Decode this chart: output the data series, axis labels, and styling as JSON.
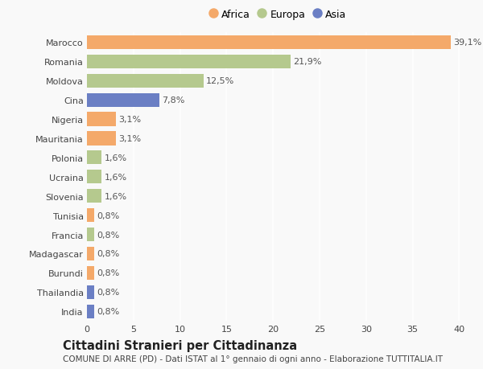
{
  "countries": [
    "Marocco",
    "Romania",
    "Moldova",
    "Cina",
    "Nigeria",
    "Mauritania",
    "Polonia",
    "Ucraina",
    "Slovenia",
    "Tunisia",
    "Francia",
    "Madagascar",
    "Burundi",
    "Thailandia",
    "India"
  ],
  "values": [
    39.1,
    21.9,
    12.5,
    7.8,
    3.1,
    3.1,
    1.6,
    1.6,
    1.6,
    0.8,
    0.8,
    0.8,
    0.8,
    0.8,
    0.8
  ],
  "labels": [
    "39,1%",
    "21,9%",
    "12,5%",
    "7,8%",
    "3,1%",
    "3,1%",
    "1,6%",
    "1,6%",
    "1,6%",
    "0,8%",
    "0,8%",
    "0,8%",
    "0,8%",
    "0,8%",
    "0,8%"
  ],
  "continents": [
    "Africa",
    "Europa",
    "Europa",
    "Asia",
    "Africa",
    "Africa",
    "Europa",
    "Europa",
    "Europa",
    "Africa",
    "Europa",
    "Africa",
    "Africa",
    "Asia",
    "Asia"
  ],
  "colors": {
    "Africa": "#F4A96A",
    "Europa": "#B5C98E",
    "Asia": "#6B7FC4"
  },
  "xlim": [
    0,
    41
  ],
  "xticks": [
    0,
    5,
    10,
    15,
    20,
    25,
    30,
    35,
    40
  ],
  "title": "Cittadini Stranieri per Cittadinanza",
  "subtitle": "COMUNE DI ARRE (PD) - Dati ISTAT al 1° gennaio di ogni anno - Elaborazione TUTTITALIA.IT",
  "background_color": "#f9f9f9",
  "grid_color": "#ffffff",
  "bar_height": 0.72,
  "label_fontsize": 8,
  "title_fontsize": 10.5,
  "subtitle_fontsize": 7.5,
  "ytick_fontsize": 8,
  "xtick_fontsize": 8
}
